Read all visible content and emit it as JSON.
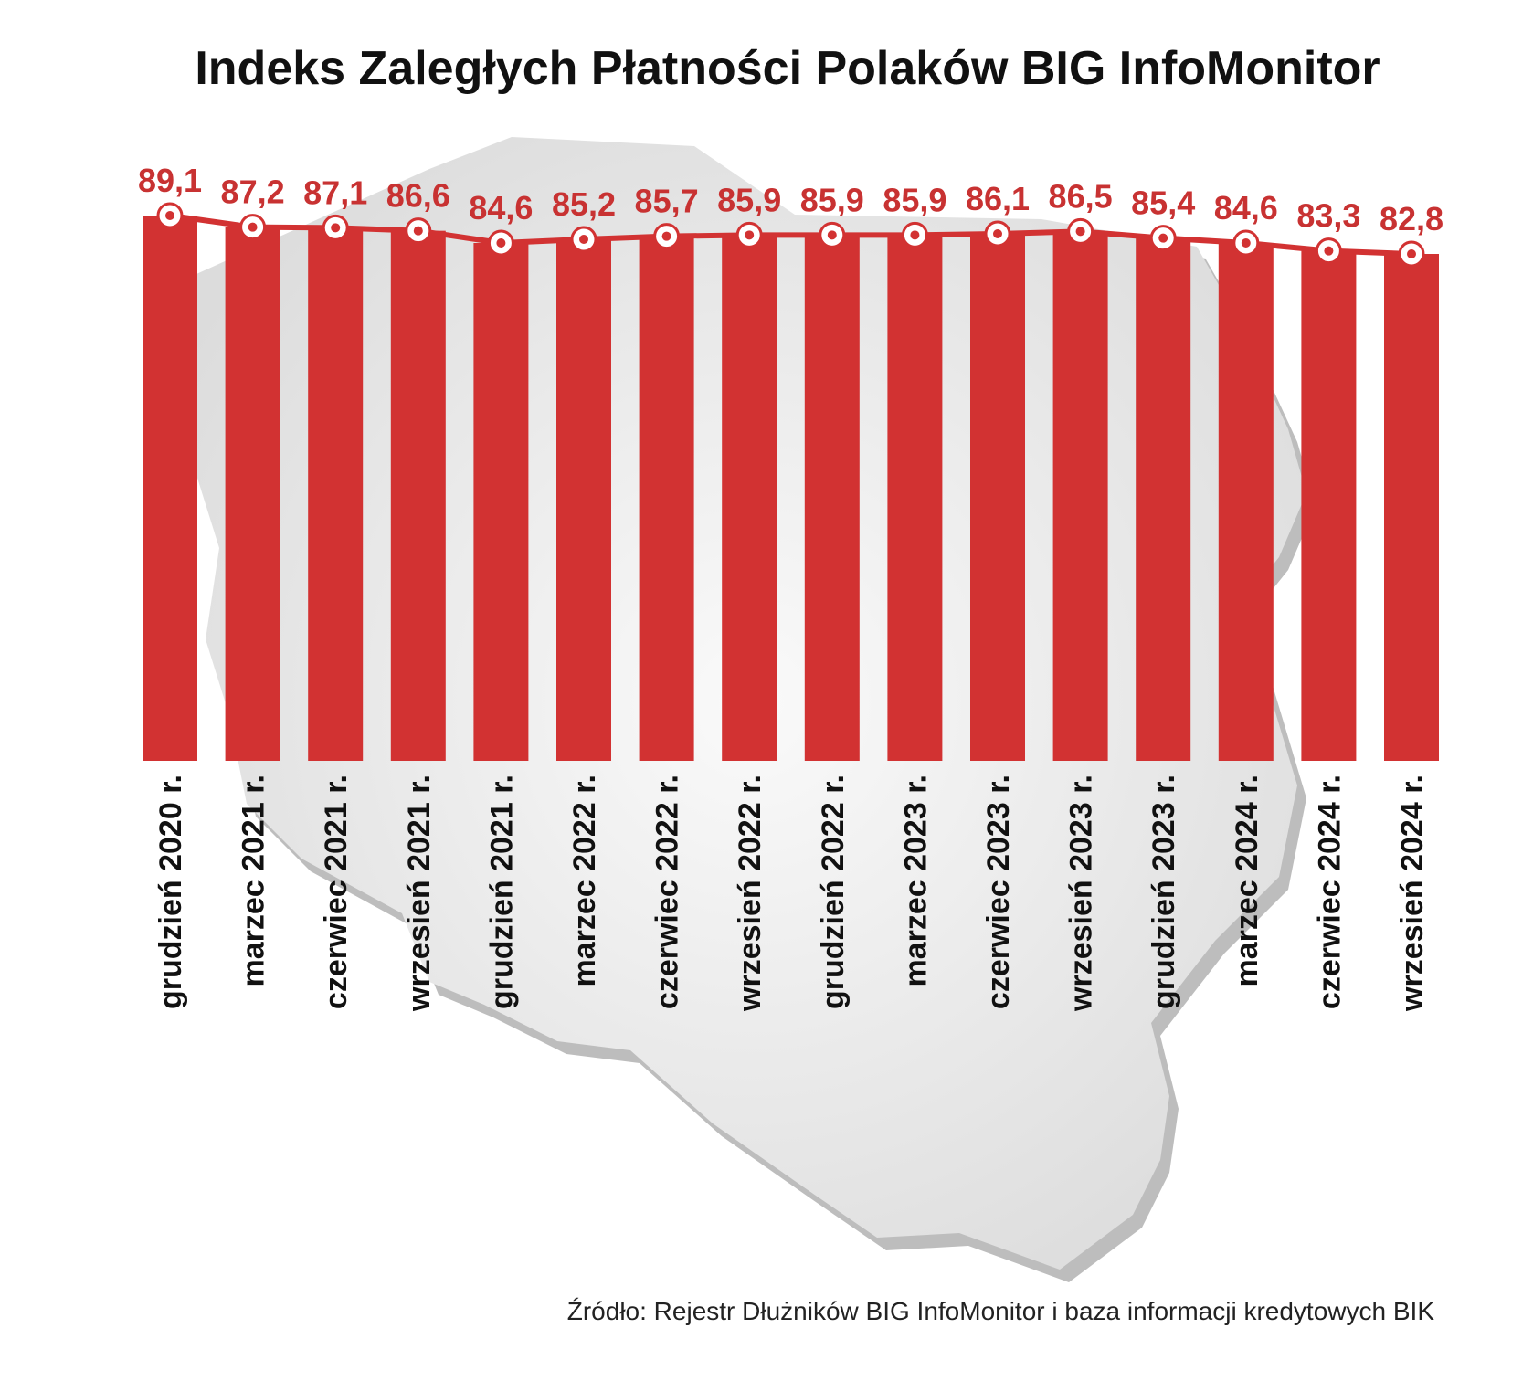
{
  "chart_data": {
    "type": "bar",
    "title": "Indeks Zaległych Płatności Polaków BIG InfoMonitor",
    "categories": [
      "grudzień 2020 r.",
      "marzec 2021 r.",
      "czerwiec 2021 r.",
      "wrzesień 2021 r.",
      "grudzień 2021 r.",
      "marzec 2022 r.",
      "czerwiec 2022 r.",
      "wrzesień 2022 r.",
      "grudzień 2022 r.",
      "marzec 2023 r.",
      "czerwiec 2023 r.",
      "wrzesień 2023 r.",
      "grudzień 2023 r.",
      "marzec 2024 r.",
      "czerwiec 2024 r.",
      "wrzesień 2024 r."
    ],
    "values": [
      89.1,
      87.2,
      87.1,
      86.6,
      84.6,
      85.2,
      85.7,
      85.9,
      85.9,
      85.9,
      86.1,
      86.5,
      85.4,
      84.6,
      83.3,
      82.8
    ],
    "value_labels": [
      "89,1",
      "87,2",
      "87,1",
      "86,6",
      "84,6",
      "85,2",
      "85,7",
      "85,9",
      "85,9",
      "85,9",
      "86,1",
      "86,5",
      "85,4",
      "84,6",
      "83,3",
      "82,8"
    ],
    "xlabel": "",
    "ylabel": "",
    "grid": false,
    "line_overlay": true,
    "colors": {
      "bar": "#d23232",
      "line": "#d23232",
      "label": "#c83232",
      "map": "#e6e6e6",
      "map_shadow": "#bdbdbd"
    },
    "source": "Źródło: Rejestr Dłużników BIG InfoMonitor i baza informacji kredytowych BIK"
  },
  "background_icon": "poland-map-silhouette"
}
